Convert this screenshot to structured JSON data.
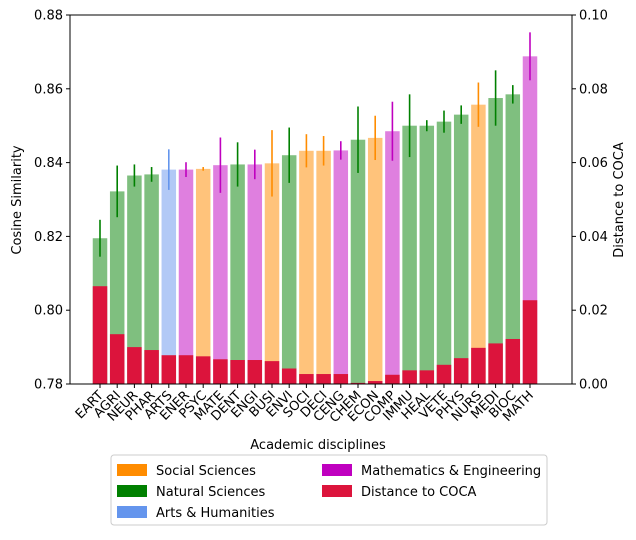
{
  "chart_data": {
    "type": "bar",
    "xlabel": "Academic disciplines",
    "ylabel": "Cosine Similarity",
    "ylabel_right": "Distance to COCA",
    "ylim": [
      0.78,
      0.88
    ],
    "ylim_right": [
      0.0,
      0.1
    ],
    "yticks": [
      "0.78",
      "0.80",
      "0.82",
      "0.84",
      "0.86",
      "0.88"
    ],
    "yticks_right": [
      "0.00",
      "0.02",
      "0.04",
      "0.06",
      "0.08",
      "0.10"
    ],
    "grid": false,
    "legend_position": "below plot",
    "categories": [
      "EART",
      "AGRI",
      "NEUR",
      "PHAR",
      "ARTS",
      "ENER",
      "PSYC",
      "MATE",
      "DENT",
      "ENGI",
      "BUSI",
      "ENVI",
      "SOCI",
      "DECI",
      "CENG",
      "CHEM",
      "ECON",
      "COMP",
      "IMMU",
      "HEAL",
      "VETE",
      "PHYS",
      "NURS",
      "MEDI",
      "BIOC",
      "MATH"
    ],
    "groups": [
      "Natural",
      "Natural",
      "Natural",
      "Natural",
      "Arts",
      "Math",
      "Social",
      "Math",
      "Natural",
      "Math",
      "Social",
      "Natural",
      "Social",
      "Social",
      "Math",
      "Natural",
      "Social",
      "Math",
      "Natural",
      "Natural",
      "Natural",
      "Natural",
      "Social",
      "Natural",
      "Natural",
      "Math"
    ],
    "series": [
      {
        "name": "Cosine Similarity",
        "axis": "left",
        "values": [
          0.8195,
          0.8322,
          0.8365,
          0.8368,
          0.8381,
          0.8381,
          0.8383,
          0.8393,
          0.8395,
          0.8395,
          0.8398,
          0.842,
          0.8432,
          0.8432,
          0.8433,
          0.8462,
          0.8467,
          0.8485,
          0.85,
          0.85,
          0.8511,
          0.853,
          0.8557,
          0.8575,
          0.8585,
          0.8688
        ],
        "error": [
          0.005,
          0.007,
          0.003,
          0.002,
          0.0055,
          0.002,
          0.0005,
          0.0075,
          0.006,
          0.004,
          0.009,
          0.0075,
          0.0045,
          0.004,
          0.0025,
          0.009,
          0.006,
          0.008,
          0.0085,
          0.0015,
          0.003,
          0.0025,
          0.006,
          0.0075,
          0.0025,
          0.0065
        ]
      },
      {
        "name": "Distance to COCA",
        "axis": "right",
        "values": [
          0.0265,
          0.0135,
          0.01,
          0.0092,
          0.0078,
          0.0078,
          0.0075,
          0.0067,
          0.0065,
          0.0065,
          0.0062,
          0.0042,
          0.0027,
          0.0027,
          0.0027,
          0.0003,
          0.0008,
          0.0025,
          0.0037,
          0.0037,
          0.0052,
          0.007,
          0.0098,
          0.011,
          0.0122,
          0.0227
        ]
      }
    ],
    "colors": {
      "Social": "#ff8c00",
      "Natural": "#008000",
      "Arts": "#6495ed",
      "Math": "#bf00bf",
      "distance": "#dc143c"
    },
    "legend": [
      {
        "label": "Social Sciences",
        "color": "#ff8c00"
      },
      {
        "label": "Natural Sciences",
        "color": "#008000"
      },
      {
        "label": "Arts & Humanities",
        "color": "#6495ed"
      },
      {
        "label": "Mathematics & Engineering",
        "color": "#bf00bf"
      },
      {
        "label": "Distance to COCA",
        "color": "#dc143c"
      }
    ]
  }
}
